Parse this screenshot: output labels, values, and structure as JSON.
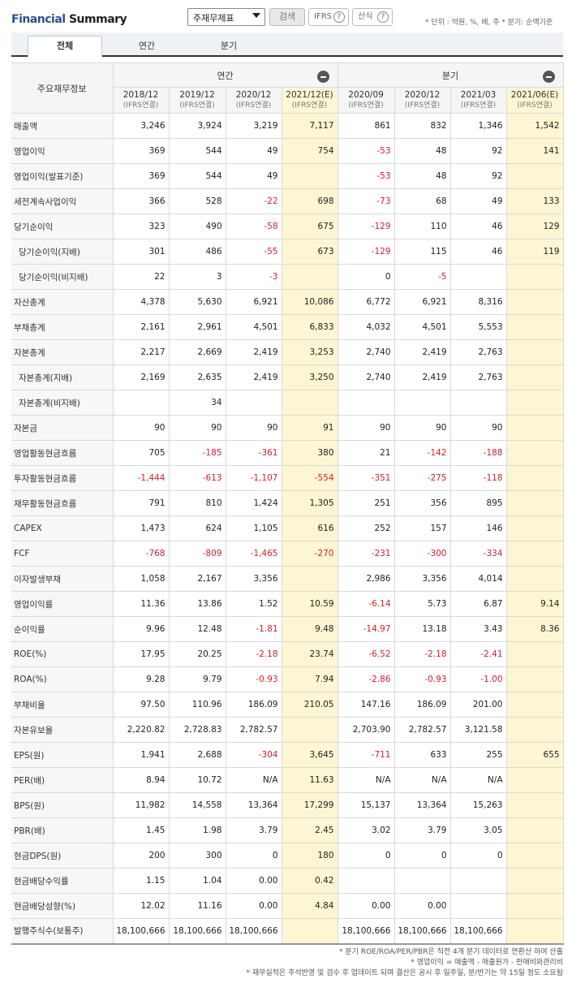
{
  "header": {
    "title_part1": "Financial",
    "title_part2": " Summary",
    "report_select": "주재무제표",
    "search_label": "검색",
    "ifrs_label": "IFRS",
    "calc_label": "산식",
    "help_glyph": "?",
    "unit_text": "* 단위 : 억원, %, 배, 주    * 분기: 순액기준"
  },
  "tabs": [
    "전체",
    "연간",
    "분기"
  ],
  "table": {
    "label_header": "주요재무정보",
    "group_annual": "연간",
    "group_quarter": "분기",
    "columns": [
      {
        "date": "2018/12",
        "sub": "(IFRS연결)"
      },
      {
        "date": "2019/12",
        "sub": "(IFRS연결)"
      },
      {
        "date": "2020/12",
        "sub": "(IFRS연결)"
      },
      {
        "date": "2021/12(E)",
        "sub": "(IFRS연결)"
      },
      {
        "date": "2020/09",
        "sub": "(IFRS연결)"
      },
      {
        "date": "2020/12",
        "sub": "(IFRS연결)"
      },
      {
        "date": "2021/03",
        "sub": "(IFRS연결)"
      },
      {
        "date": "2021/06(E)",
        "sub": "(IFRS연결)"
      }
    ],
    "rows": [
      {
        "label": "매출액",
        "values": [
          "3,246",
          "3,924",
          "3,219",
          "7,117",
          "861",
          "832",
          "1,346",
          "1,542"
        ]
      },
      {
        "label": "영업이익",
        "values": [
          "369",
          "544",
          "49",
          "754",
          "-53",
          "48",
          "92",
          "141"
        ]
      },
      {
        "label": "영업이익(발표기준)",
        "values": [
          "369",
          "544",
          "49",
          "",
          "-53",
          "48",
          "92",
          ""
        ]
      },
      {
        "label": "세전계속사업이익",
        "values": [
          "366",
          "528",
          "-22",
          "698",
          "-73",
          "68",
          "49",
          "133"
        ]
      },
      {
        "label": "당기순이익",
        "values": [
          "323",
          "490",
          "-58",
          "675",
          "-129",
          "110",
          "46",
          "129"
        ]
      },
      {
        "label": "당기순이익(지배)",
        "values": [
          "301",
          "486",
          "-55",
          "673",
          "-129",
          "115",
          "46",
          "119"
        ],
        "indent": true
      },
      {
        "label": "당기순이익(비지배)",
        "values": [
          "22",
          "3",
          "-3",
          "",
          "0",
          "-5",
          "",
          ""
        ],
        "indent": true
      },
      {
        "label": "자산총계",
        "values": [
          "4,378",
          "5,630",
          "6,921",
          "10,086",
          "6,772",
          "6,921",
          "8,316",
          ""
        ]
      },
      {
        "label": "부채총계",
        "values": [
          "2,161",
          "2,961",
          "4,501",
          "6,833",
          "4,032",
          "4,501",
          "5,553",
          ""
        ]
      },
      {
        "label": "자본총계",
        "values": [
          "2,217",
          "2,669",
          "2,419",
          "3,253",
          "2,740",
          "2,419",
          "2,763",
          ""
        ]
      },
      {
        "label": "자본총계(지배)",
        "values": [
          "2,169",
          "2,635",
          "2,419",
          "3,250",
          "2,740",
          "2,419",
          "2,763",
          ""
        ],
        "indent": true
      },
      {
        "label": "자본총계(비지배)",
        "values": [
          "",
          "34",
          "",
          "",
          "",
          "",
          "",
          ""
        ],
        "indent": true
      },
      {
        "label": "자본금",
        "values": [
          "90",
          "90",
          "90",
          "91",
          "90",
          "90",
          "90",
          ""
        ]
      },
      {
        "label": "영업활동현금흐름",
        "values": [
          "705",
          "-185",
          "-361",
          "380",
          "21",
          "-142",
          "-188",
          ""
        ]
      },
      {
        "label": "투자활동현금흐름",
        "values": [
          "-1,444",
          "-613",
          "-1,107",
          "-554",
          "-351",
          "-275",
          "-118",
          ""
        ]
      },
      {
        "label": "재무활동현금흐름",
        "values": [
          "791",
          "810",
          "1,424",
          "1,305",
          "251",
          "356",
          "895",
          ""
        ]
      },
      {
        "label": "CAPEX",
        "values": [
          "1,473",
          "624",
          "1,105",
          "616",
          "252",
          "157",
          "146",
          ""
        ]
      },
      {
        "label": "FCF",
        "values": [
          "-768",
          "-809",
          "-1,465",
          "-270",
          "-231",
          "-300",
          "-334",
          ""
        ]
      },
      {
        "label": "이자발생부채",
        "values": [
          "1,058",
          "2,167",
          "3,356",
          "",
          "2,986",
          "3,356",
          "4,014",
          ""
        ]
      },
      {
        "label": "영업이익률",
        "values": [
          "11.36",
          "13.86",
          "1.52",
          "10.59",
          "-6.14",
          "5.73",
          "6.87",
          "9.14"
        ]
      },
      {
        "label": "순이익률",
        "values": [
          "9.96",
          "12.48",
          "-1.81",
          "9.48",
          "-14.97",
          "13.18",
          "3.43",
          "8.36"
        ]
      },
      {
        "label": "ROE(%)",
        "values": [
          "17.95",
          "20.25",
          "-2.18",
          "23.74",
          "-6.52",
          "-2.18",
          "-2.41",
          ""
        ]
      },
      {
        "label": "ROA(%)",
        "values": [
          "9.28",
          "9.79",
          "-0.93",
          "7.94",
          "-2.86",
          "-0.93",
          "-1.00",
          ""
        ]
      },
      {
        "label": "부채비율",
        "values": [
          "97.50",
          "110.96",
          "186.09",
          "210.05",
          "147.16",
          "186.09",
          "201.00",
          ""
        ]
      },
      {
        "label": "자본유보율",
        "values": [
          "2,220.82",
          "2,728.83",
          "2,782.57",
          "",
          "2,703.90",
          "2,782.57",
          "3,121.58",
          ""
        ]
      },
      {
        "label": "EPS(원)",
        "values": [
          "1,941",
          "2,688",
          "-304",
          "3,645",
          "-711",
          "633",
          "255",
          "655"
        ]
      },
      {
        "label": "PER(배)",
        "values": [
          "8.94",
          "10.72",
          "N/A",
          "11.63",
          "N/A",
          "N/A",
          "N/A",
          ""
        ]
      },
      {
        "label": "BPS(원)",
        "values": [
          "11,982",
          "14,558",
          "13,364",
          "17,299",
          "15,137",
          "13,364",
          "15,263",
          ""
        ]
      },
      {
        "label": "PBR(배)",
        "values": [
          "1.45",
          "1.98",
          "3.79",
          "2.45",
          "3.02",
          "3.79",
          "3.05",
          ""
        ]
      },
      {
        "label": "현금DPS(원)",
        "values": [
          "200",
          "300",
          "0",
          "180",
          "0",
          "0",
          "0",
          ""
        ]
      },
      {
        "label": "현금배당수익률",
        "values": [
          "1.15",
          "1.04",
          "0.00",
          "0.42",
          "",
          "",
          "",
          ""
        ]
      },
      {
        "label": "현금배당성향(%)",
        "values": [
          "12.02",
          "11.16",
          "0.00",
          "4.84",
          "0.00",
          "0.00",
          "",
          ""
        ]
      },
      {
        "label": "발행주식수(보통주)",
        "values": [
          "18,100,666",
          "18,100,666",
          "18,100,666",
          "",
          "18,100,666",
          "18,100,666",
          "18,100,666",
          ""
        ]
      }
    ]
  },
  "notes": [
    "* 분기 ROE/ROA/PER/PBR은 직전 4개 분기 데이터로 연환산 하여 산출",
    "* 영업이익 = 매출액 - 매출원가 - 판매비와관리비",
    "* 재무실적은 주석반영 및 검수 후 업데이트 되며 결산은 공시 후 일주일, 분/반기는 약 15일 정도 소요됨"
  ],
  "colors": {
    "negative": "#d2202c",
    "estimate_bg": "#fdf6d3",
    "title_blue": "#2a4d9b"
  }
}
